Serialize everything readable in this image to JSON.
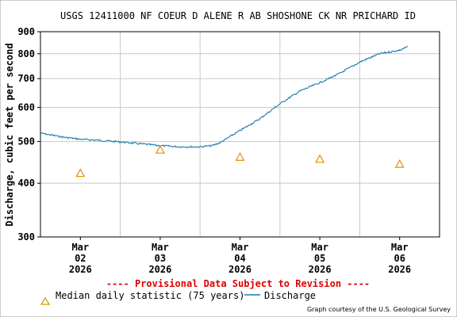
{
  "chart_data": {
    "type": "line",
    "title": "USGS 12411000 NF COEUR D ALENE R AB SHOSHONE CK NR PRICHARD ID",
    "ylabel": "Discharge, cubic feet per second",
    "xlabel": "",
    "y_scale": "log",
    "ylim": [
      300,
      900
    ],
    "y_ticks": [
      "300",
      "400",
      "500",
      "600",
      "700",
      "800",
      "900"
    ],
    "xlim_days": [
      1.5,
      6.5
    ],
    "x_ticks": [
      {
        "month": "Mar",
        "day": "02",
        "year": "2026",
        "at": 2
      },
      {
        "month": "Mar",
        "day": "03",
        "year": "2026",
        "at": 3
      },
      {
        "month": "Mar",
        "day": "04",
        "year": "2026",
        "at": 4
      },
      {
        "month": "Mar",
        "day": "05",
        "year": "2026",
        "at": 5
      },
      {
        "month": "Mar",
        "day": "06",
        "year": "2026",
        "at": 6
      }
    ],
    "grid": true,
    "legend_position": "bottom",
    "series": [
      {
        "name": "Median daily statistic (75 years)",
        "marker": "triangle",
        "color": "#e09000",
        "points": [
          {
            "x": 2,
            "y": 422
          },
          {
            "x": 3,
            "y": 478
          },
          {
            "x": 4,
            "y": 460
          },
          {
            "x": 5,
            "y": 455
          },
          {
            "x": 6,
            "y": 443
          }
        ]
      },
      {
        "name": "Discharge",
        "color": "#1a7bab",
        "points": [
          {
            "x": 1.5,
            "y": 523
          },
          {
            "x": 1.75,
            "y": 513
          },
          {
            "x": 2.0,
            "y": 506
          },
          {
            "x": 2.25,
            "y": 503
          },
          {
            "x": 2.5,
            "y": 499
          },
          {
            "x": 2.75,
            "y": 494
          },
          {
            "x": 3.0,
            "y": 489
          },
          {
            "x": 3.25,
            "y": 486
          },
          {
            "x": 3.5,
            "y": 486
          },
          {
            "x": 3.65,
            "y": 489
          },
          {
            "x": 3.75,
            "y": 497
          },
          {
            "x": 3.85,
            "y": 510
          },
          {
            "x": 4.0,
            "y": 530
          },
          {
            "x": 4.25,
            "y": 565
          },
          {
            "x": 4.5,
            "y": 612
          },
          {
            "x": 4.75,
            "y": 655
          },
          {
            "x": 5.0,
            "y": 685
          },
          {
            "x": 5.25,
            "y": 720
          },
          {
            "x": 5.5,
            "y": 765
          },
          {
            "x": 5.75,
            "y": 800
          },
          {
            "x": 6.0,
            "y": 815
          },
          {
            "x": 6.1,
            "y": 830
          }
        ]
      }
    ],
    "annotations": {
      "provisional": "---- Provisional Data Subject to Revision ----",
      "credit": "Graph courtesy of the U.S. Geological Survey"
    },
    "colors": {
      "background": "#ffffff",
      "grid": "#c8c8c8",
      "axis": "#000000",
      "provisional": "#dd0000"
    }
  }
}
